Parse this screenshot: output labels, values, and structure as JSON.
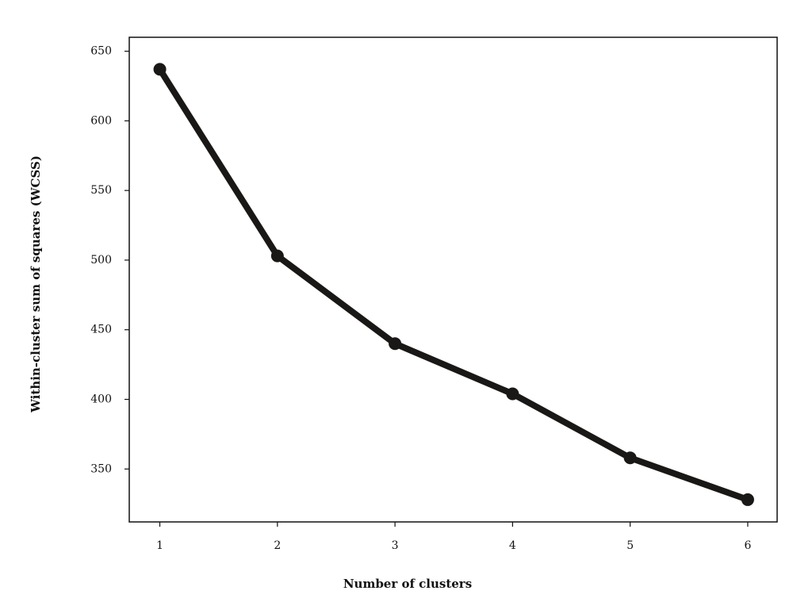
{
  "chart_data": {
    "type": "line",
    "x_label": "Number of clusters",
    "y_label": "Within-cluster sum of squares (WCSS)",
    "x": [
      1,
      2,
      3,
      4,
      5,
      6
    ],
    "series": [
      {
        "color": "#1a1816",
        "values": [
          637,
          503,
          440,
          404,
          358,
          328
        ]
      }
    ],
    "xlim": [
      0.74,
      6.25
    ],
    "xticks": [
      1,
      2,
      3,
      4,
      5,
      6
    ],
    "ylim": [
      312,
      660
    ],
    "yticks": [
      350,
      400,
      450,
      500,
      550,
      600,
      650
    ]
  }
}
